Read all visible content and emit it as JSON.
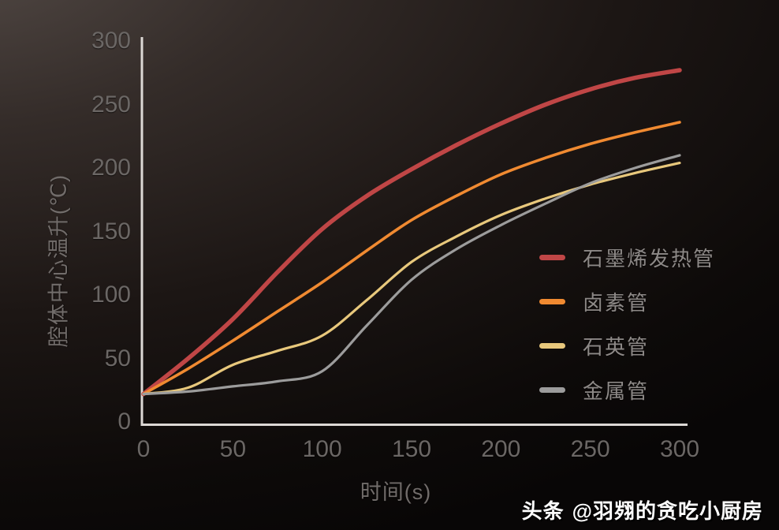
{
  "watermark": {
    "brand": "头条",
    "handle": "@羽翙的贪吃小厨房"
  },
  "colors": {
    "background_top_left": "#544b47",
    "background_bottom": "#0d0a09",
    "axis_line": "#dcd8d5",
    "tick_label": "#6b6765",
    "axis_title": "#716c6a",
    "legend_text": "#8d8987",
    "watermark_text": "#ffffff"
  },
  "chart_data": {
    "type": "line",
    "title": "",
    "xlabel": "时间(s)",
    "ylabel": "腔体中心温升(℃)",
    "xlim": [
      0,
      300
    ],
    "ylim": [
      0,
      300
    ],
    "x_ticks": [
      0,
      50,
      100,
      150,
      200,
      250,
      300
    ],
    "y_ticks": [
      0,
      50,
      100,
      150,
      200,
      250,
      300
    ],
    "grid": false,
    "legend_position": "center-right",
    "x": [
      0,
      25,
      50,
      75,
      100,
      125,
      150,
      175,
      200,
      225,
      250,
      275,
      300
    ],
    "series": [
      {
        "name": "石墨烯发热管",
        "color": "#c04646",
        "stroke_width": 5.5,
        "values": [
          22,
          50,
          81,
          118,
          152,
          178,
          199,
          218,
          235,
          250,
          262,
          271,
          277
        ]
      },
      {
        "name": "卤素管",
        "color": "#f08a31",
        "stroke_width": 3.6,
        "values": [
          22,
          42,
          64,
          87,
          110,
          135,
          159,
          178,
          195,
          208,
          219,
          228,
          236
        ]
      },
      {
        "name": "石英管",
        "color": "#e8c87c",
        "stroke_width": 3.2,
        "values": [
          22,
          27,
          45,
          56,
          68,
          96,
          126,
          146,
          163,
          176,
          187,
          196,
          204
        ]
      },
      {
        "name": "金属管",
        "color": "#9c9c9c",
        "stroke_width": 3.2,
        "values": [
          22,
          24,
          28,
          32,
          40,
          76,
          112,
          136,
          155,
          172,
          188,
          200,
          210
        ]
      }
    ]
  }
}
